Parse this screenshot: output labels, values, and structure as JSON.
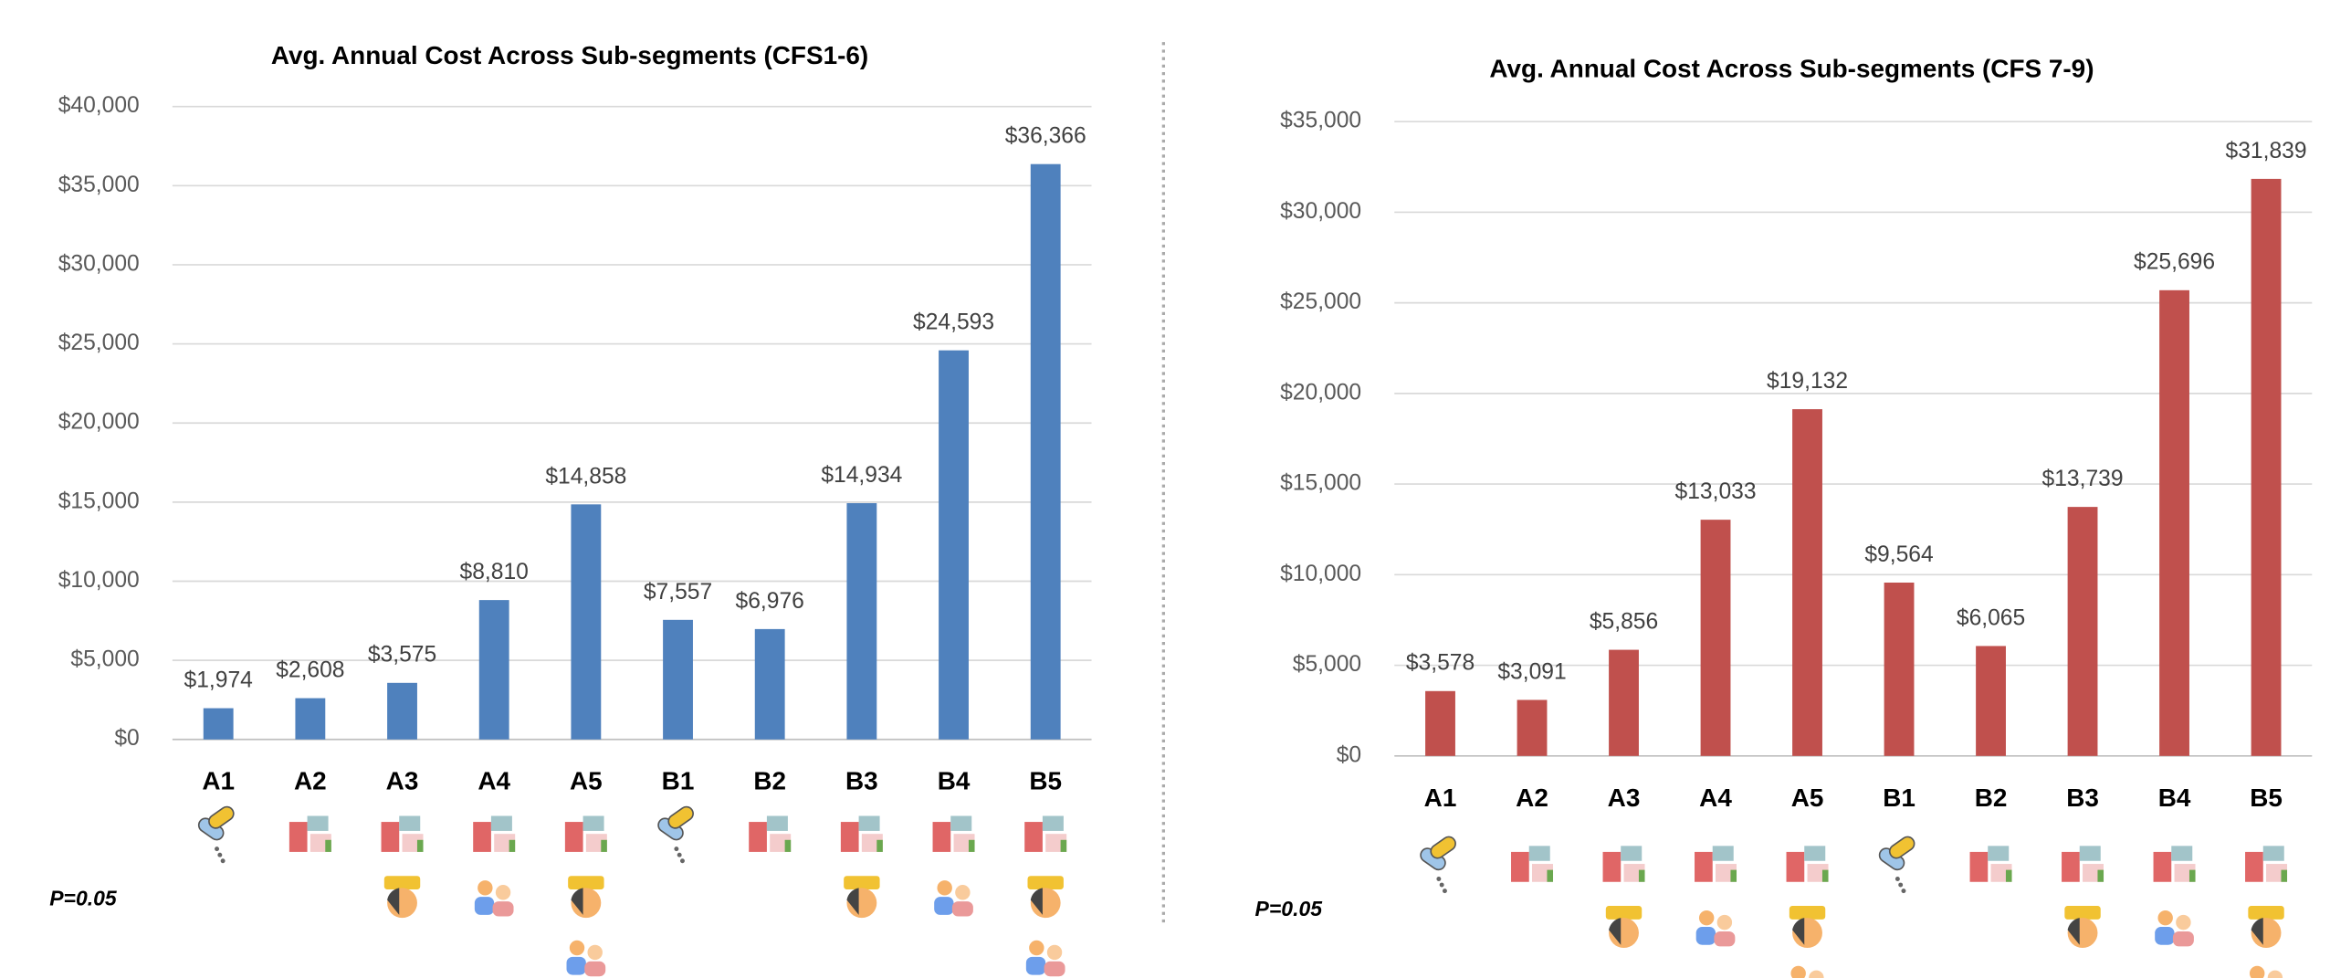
{
  "chart_data": [
    {
      "type": "bar",
      "title": "Avg. Annual Cost Across Sub-segments (CFS1-6)",
      "categories": [
        "A1",
        "A2",
        "A3",
        "A4",
        "A5",
        "B1",
        "B2",
        "B3",
        "B4",
        "B5"
      ],
      "values": [
        1974,
        2608,
        3575,
        8810,
        14858,
        7557,
        6976,
        14934,
        24593,
        36366
      ],
      "value_labels": [
        "$1,974",
        "$2,608",
        "$3,575",
        "$8,810",
        "$14,858",
        "$7,557",
        "$6,976",
        "$14,934",
        "$24,593",
        "$36,366"
      ],
      "color": "#4f81bd",
      "ylim": [
        0,
        40000
      ],
      "yticks": [
        {
          "value": 0,
          "label": "$0"
        },
        {
          "value": 5000,
          "label": "$5,000"
        },
        {
          "value": 10000,
          "label": "$10,000"
        },
        {
          "value": 15000,
          "label": "$15,000"
        },
        {
          "value": 20000,
          "label": "$20,000"
        },
        {
          "value": 25000,
          "label": "$25,000"
        },
        {
          "value": 30000,
          "label": "$30,000"
        },
        {
          "value": 35000,
          "label": "$35,000"
        },
        {
          "value": 40000,
          "label": "$40,000"
        }
      ],
      "grid": true,
      "annotation": "P=0.05"
    },
    {
      "type": "bar",
      "title": "Avg. Annual Cost Across Sub-segments (CFS 7-9)",
      "categories": [
        "A1",
        "A2",
        "A3",
        "A4",
        "A5",
        "B1",
        "B2",
        "B3",
        "B4",
        "B5"
      ],
      "values": [
        3578,
        3091,
        5856,
        13033,
        19132,
        9564,
        6065,
        13739,
        25696,
        31839
      ],
      "value_labels": [
        "$3,578",
        "$3,091",
        "$5,856",
        "$13,033",
        "$19,132",
        "$9,564",
        "$6,065",
        "$13,739",
        "$25,696",
        "$31,839"
      ],
      "color": "#c0504d",
      "ylim": [
        0,
        35000
      ],
      "yticks": [
        {
          "value": 0,
          "label": "$0"
        },
        {
          "value": 5000,
          "label": "$5,000"
        },
        {
          "value": 10000,
          "label": "$10,000"
        },
        {
          "value": 15000,
          "label": "$15,000"
        },
        {
          "value": 20000,
          "label": "$20,000"
        },
        {
          "value": 25000,
          "label": "$25,000"
        },
        {
          "value": 30000,
          "label": "$30,000"
        },
        {
          "value": 35000,
          "label": "$35,000"
        }
      ],
      "grid": true,
      "annotation": "P=0.05"
    }
  ]
}
